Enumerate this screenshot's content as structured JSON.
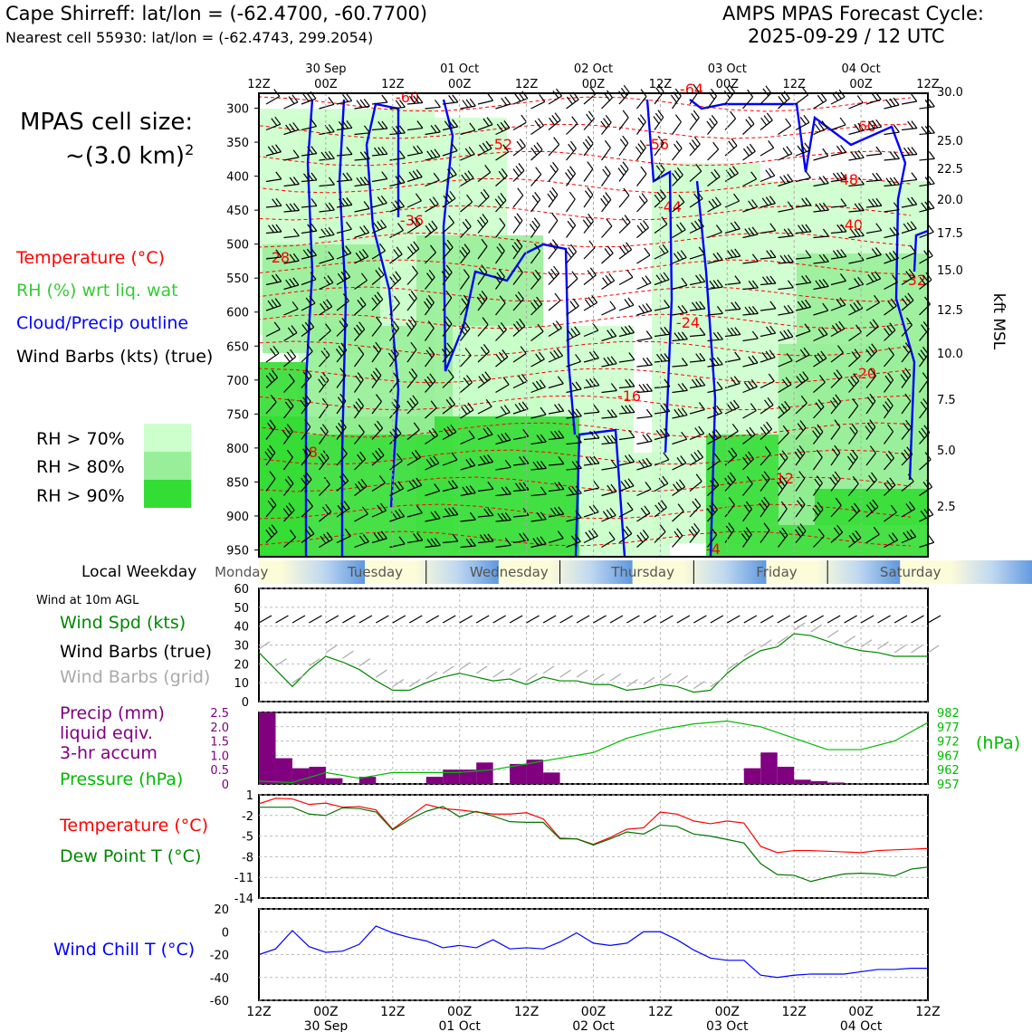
{
  "header": {
    "title": "Cape Shirreff: lat/lon = (-62.4700, -60.7700)",
    "subtitle": "Nearest cell 55930: lat/lon = (-62.4743, 299.2054)",
    "right_line1": "AMPS MPAS Forecast Cycle:",
    "right_line2": "2025-09-29 / 12 UTC"
  },
  "cell_size": {
    "line1": "MPAS cell size:",
    "line2": "~(3.0 km)",
    "sup": "2"
  },
  "legend": {
    "temperature": "Temperature (°C)",
    "rh": "RH (%) wrt liq. wat",
    "cloud": "Cloud/Precip outline",
    "wind": "Wind Barbs (kts) (true)",
    "rh70": "RH > 70%",
    "rh80": "RH > 80%",
    "rh90": "RH > 90%"
  },
  "colors": {
    "temp": "#ff0000",
    "rh": "#33cc33",
    "cloud": "#0000ff",
    "rh70": "#ccffcc",
    "rh80": "#99ee99",
    "rh90": "#33dd33",
    "pressure": "#00bb00",
    "precip": "#800080",
    "windchill": "#0000ff",
    "dew": "#007700"
  },
  "weekday": {
    "label": "Local Weekday",
    "days": [
      "Monday",
      "Tuesday",
      "Wednesday",
      "Thursday",
      "Friday",
      "Saturday"
    ]
  },
  "time_axis": {
    "tick_labels": [
      "12Z",
      "00Z",
      "12Z",
      "00Z",
      "12Z",
      "00Z",
      "12Z",
      "00Z",
      "12Z",
      "00Z",
      "12Z"
    ],
    "date_labels": [
      "30 Sep",
      "01 Oct",
      "02 Oct",
      "03 Oct",
      "04 Oct"
    ]
  },
  "surface_panel": {
    "title": "Wind at 10m AGL",
    "spd_label": "Wind Spd (kts)",
    "barb_true": "Wind Barbs (true)",
    "barb_grid": "Wind Barbs (grid)"
  },
  "precip_panel": {
    "line1": "Precip (mm)",
    "line2": "liquid eqiv.",
    "line3": "3-hr accum",
    "pressure": "Pressure (hPa)",
    "unit": "(hPa)"
  },
  "temp_panel": {
    "temp": "Temperature (°C)",
    "dew": "Dew Point T (°C)"
  },
  "wc_panel": {
    "label": "Wind Chill T (°C)"
  },
  "chart_data": [
    {
      "type": "heatmap",
      "name": "cross-section",
      "yaxis_left": {
        "label": "",
        "ticks": [
          300,
          350,
          400,
          450,
          500,
          550,
          600,
          650,
          700,
          750,
          800,
          850,
          900,
          950
        ]
      },
      "yaxis_right": {
        "label": "kft MSL",
        "ticks": [
          "30.0",
          "25.0",
          "22.5",
          "20.0",
          "17.5",
          "15.0",
          "12.5",
          "10.0",
          "7.5",
          "5.0",
          "2.5"
        ]
      },
      "temp_contour_labels": [
        "-60",
        "-52",
        "-56",
        "-64",
        "-60",
        "-48",
        "-44",
        "-36",
        "-40",
        "-32",
        "-28",
        "-24",
        "-20",
        "-16",
        "-12",
        "-8",
        "-4"
      ]
    },
    {
      "type": "line",
      "name": "wind-speed",
      "ylim": [
        0,
        60
      ],
      "yticks": [
        0,
        10,
        20,
        30,
        40,
        50,
        60
      ],
      "x_hours": [
        0,
        3,
        6,
        9,
        12,
        15,
        18,
        21,
        24,
        27,
        30,
        33,
        36,
        39,
        42,
        45,
        48,
        51,
        54,
        57,
        60,
        63,
        66,
        69,
        72,
        75,
        78,
        81,
        84,
        87,
        90,
        93,
        96,
        99,
        102,
        105,
        108,
        111,
        114,
        117,
        120
      ],
      "values": [
        26,
        17,
        8,
        17,
        24,
        21,
        17,
        11,
        6,
        6,
        10,
        13,
        15,
        13,
        11,
        12,
        9,
        13,
        11,
        11,
        9,
        9,
        6,
        7,
        9,
        8,
        5,
        6,
        15,
        22,
        27,
        29,
        36,
        35,
        32,
        29,
        27,
        26,
        24,
        24,
        24
      ]
    },
    {
      "type": "bar",
      "name": "precip-pressure",
      "ylim": [
        0,
        2.5
      ],
      "yticks": [
        "0",
        "0.5",
        "1.0",
        "1.5",
        "2.0",
        "2.5"
      ],
      "y2ticks": [
        "957",
        "962",
        "967",
        "972",
        "977",
        "982"
      ],
      "precip_x": [
        0,
        3,
        6,
        9,
        12,
        15,
        18,
        21,
        24,
        27,
        30,
        33,
        36,
        39,
        42,
        45,
        48,
        51,
        54,
        57,
        60,
        63,
        66,
        69,
        72,
        75,
        78,
        81,
        84,
        87,
        90,
        93,
        96,
        99,
        102,
        105,
        108,
        111,
        114,
        117
      ],
      "precip": [
        2.5,
        0.9,
        0.55,
        0.6,
        0.2,
        0,
        0.25,
        0,
        0,
        0,
        0.25,
        0.5,
        0.5,
        0.75,
        0,
        0.7,
        0.85,
        0.4,
        0,
        0,
        0,
        0,
        0,
        0,
        0,
        0,
        0,
        0,
        0,
        0.55,
        1.1,
        0.6,
        0.15,
        0.1,
        0.05,
        0,
        0,
        0,
        0,
        0
      ],
      "pressure_x": [
        0,
        6,
        12,
        18,
        24,
        30,
        36,
        42,
        48,
        54,
        60,
        66,
        72,
        78,
        84,
        90,
        96,
        102,
        108,
        114,
        120
      ],
      "pressure": [
        958,
        957.5,
        961,
        959,
        961,
        961,
        961,
        962,
        964,
        966,
        968,
        973,
        976,
        978,
        979,
        977,
        973,
        969,
        969,
        972,
        978.5
      ]
    },
    {
      "type": "line",
      "name": "temperature-dewpoint",
      "ylim": [
        -14,
        1
      ],
      "yticks": [
        "1",
        "-2",
        "-5",
        "-8",
        "-11",
        "-14"
      ],
      "x_hours": [
        0,
        3,
        6,
        9,
        12,
        15,
        18,
        21,
        24,
        27,
        30,
        33,
        36,
        39,
        42,
        45,
        48,
        51,
        54,
        57,
        60,
        63,
        66,
        69,
        72,
        75,
        78,
        81,
        84,
        87,
        90,
        93,
        96,
        99,
        102,
        105,
        108,
        111,
        114,
        117,
        120
      ],
      "temp": [
        -0.3,
        0.5,
        0.4,
        -0.4,
        -0.2,
        -0.8,
        -0.7,
        -1.2,
        -4,
        -2.2,
        -0.4,
        -1,
        -1.2,
        -1.5,
        -1.8,
        -1.8,
        -1.6,
        -2.5,
        -5.3,
        -5.4,
        -6.2,
        -5.2,
        -4,
        -3.8,
        -1.5,
        -1.8,
        -2.8,
        -3.2,
        -2.8,
        -3.1,
        -6.5,
        -7.4,
        -7.1,
        -7.1,
        -7.2,
        -7.3,
        -7.4,
        -7.1,
        -7.0,
        -6.9,
        -6.8
      ],
      "dew": [
        -0.8,
        -0.8,
        -0.8,
        -1.8,
        -2,
        -0.9,
        -1,
        -1.5,
        -4.1,
        -2.6,
        -1.4,
        -0.7,
        -2.2,
        -1.4,
        -2.1,
        -2.9,
        -3,
        -3,
        -5.4,
        -5.4,
        -6.3,
        -5.4,
        -4.4,
        -4.7,
        -3.4,
        -3.6,
        -4.7,
        -5,
        -5.5,
        -6,
        -9,
        -10.6,
        -10.7,
        -11.6,
        -11.0,
        -10.5,
        -10.4,
        -10.5,
        -10.8,
        -9.8,
        -9.5
      ]
    },
    {
      "type": "line",
      "name": "wind-chill",
      "ylim": [
        -60,
        20
      ],
      "yticks": [
        "20",
        "0",
        "-20",
        "-40",
        "-60"
      ],
      "x_hours": [
        0,
        3,
        6,
        9,
        12,
        15,
        18,
        21,
        24,
        27,
        30,
        33,
        36,
        39,
        42,
        45,
        48,
        51,
        54,
        57,
        60,
        63,
        66,
        69,
        72,
        75,
        78,
        81,
        84,
        87,
        90,
        93,
        96,
        99,
        102,
        105,
        108,
        111,
        114,
        117,
        120
      ],
      "values": [
        -20,
        -15,
        1,
        -13,
        -18,
        -17,
        -11,
        5,
        -1,
        -5,
        -8,
        -14,
        -12,
        -14,
        -7,
        -15,
        -14,
        -15,
        -9,
        -1,
        -10,
        -12,
        -10,
        0,
        0,
        -7,
        -16,
        -23,
        -25,
        -25,
        -38,
        -40,
        -38,
        -37,
        -37,
        -37,
        -35,
        -33,
        -33,
        -32,
        -32
      ]
    }
  ]
}
